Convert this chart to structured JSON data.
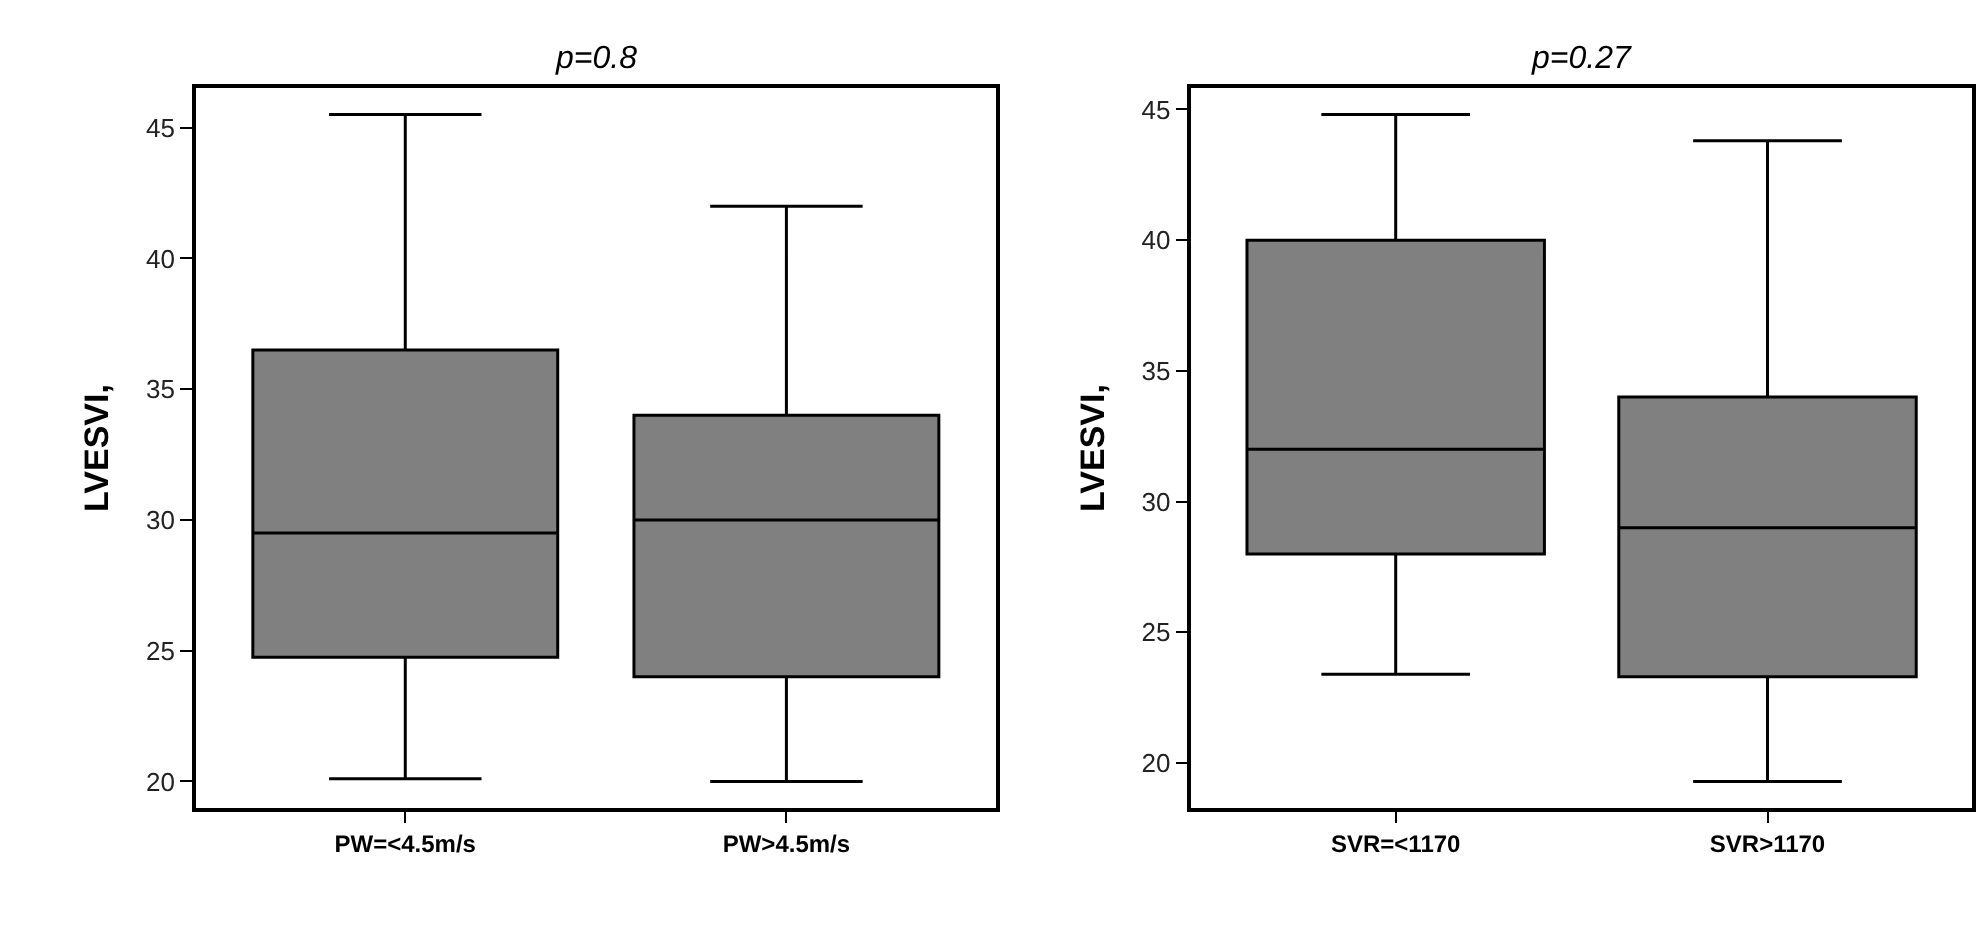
{
  "chart_data": [
    {
      "type": "box",
      "title": "p=0.8",
      "ylabel": "LVESVI,",
      "categories": [
        "PW=<4.5m/s",
        "PW>4.5m/s"
      ],
      "ylim": [
        19,
        46.5
      ],
      "yticks": [
        20,
        25,
        30,
        35,
        40,
        45
      ],
      "color": "#808080",
      "boxes": [
        {
          "low": 20.1,
          "q1": 24.75,
          "median": 29.5,
          "q3": 36.5,
          "high": 45.5
        },
        {
          "low": 20,
          "q1": 24,
          "median": 30,
          "q3": 34,
          "high": 42
        }
      ]
    },
    {
      "type": "box",
      "title": "p=0.27",
      "ylabel": "LVESVI,",
      "categories": [
        "SVR=<1170",
        "SVR>1170"
      ],
      "ylim": [
        18.3,
        45.8
      ],
      "yticks": [
        20,
        25,
        30,
        35,
        40,
        45
      ],
      "color": "#808080",
      "boxes": [
        {
          "low": 23.4,
          "q1": 28,
          "median": 32,
          "q3": 40,
          "high": 44.8
        },
        {
          "low": 19.3,
          "q1": 23.3,
          "median": 29,
          "q3": 34,
          "high": 43.8
        }
      ]
    }
  ]
}
